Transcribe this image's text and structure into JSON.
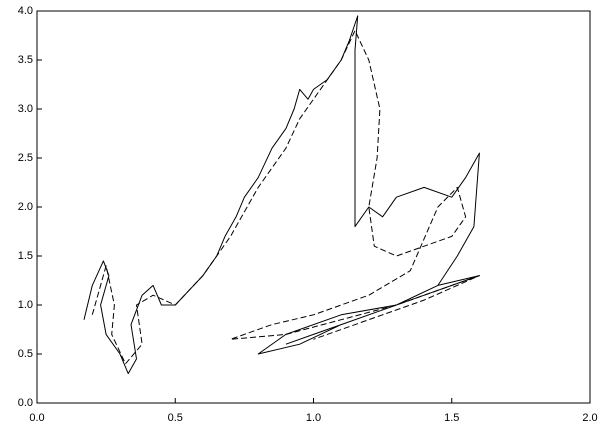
{
  "chart_data": {
    "type": "line",
    "xlim": [
      0,
      2.0
    ],
    "ylim": [
      0,
      4.0
    ],
    "xticks": [
      {
        "value": 0,
        "label": "0.0"
      },
      0.5,
      {
        "value": 1,
        "label": "1.0"
      },
      1.5,
      {
        "value": 2,
        "label": "2.0"
      }
    ],
    "yticks": [
      {
        "value": 0,
        "label": "0.0"
      },
      0.5,
      {
        "value": 1,
        "label": "1.0"
      },
      1.5,
      {
        "value": 2,
        "label": "2.0"
      },
      2.5,
      {
        "value": 3,
        "label": "3.0"
      },
      3.5,
      {
        "value": 4,
        "label": "4.0"
      }
    ],
    "grid": false,
    "series": [
      {
        "color": "#000000",
        "dash": false,
        "x": [
          0.17,
          0.2,
          0.24,
          0.26,
          0.23,
          0.25,
          0.3,
          0.33,
          0.36,
          0.34,
          0.38,
          0.42,
          0.45,
          0.5,
          0.55,
          0.6,
          0.65,
          0.68,
          0.72,
          0.75,
          0.8,
          0.85,
          0.9,
          0.93,
          0.95,
          0.98,
          1.0,
          1.05,
          1.1,
          1.13,
          1.16,
          1.15,
          1.15,
          1.2,
          1.25,
          1.3,
          1.4,
          1.5,
          1.55,
          1.6,
          1.58,
          1.52,
          1.45,
          1.3,
          1.1,
          0.95,
          0.8,
          0.9,
          1.1,
          1.3,
          1.45,
          1.6,
          1.4,
          1.2,
          1.0,
          0.9
        ],
        "values": [
          0.85,
          1.2,
          1.45,
          1.3,
          1.0,
          0.7,
          0.5,
          0.3,
          0.45,
          0.8,
          1.1,
          1.2,
          1.0,
          1.0,
          1.15,
          1.3,
          1.5,
          1.7,
          1.9,
          2.1,
          2.3,
          2.6,
          2.8,
          3.0,
          3.2,
          3.1,
          3.2,
          3.3,
          3.5,
          3.7,
          3.95,
          3.6,
          1.8,
          2.0,
          1.9,
          2.1,
          2.2,
          2.1,
          2.3,
          2.55,
          1.8,
          1.5,
          1.2,
          1.0,
          0.8,
          0.6,
          0.5,
          0.7,
          0.9,
          1.0,
          1.2,
          1.3,
          1.1,
          0.9,
          0.7,
          0.6
        ]
      },
      {
        "color": "#000000",
        "dash": true,
        "x": [
          0.2,
          0.25,
          0.28,
          0.27,
          0.32,
          0.38,
          0.36,
          0.42,
          0.5,
          0.6,
          0.7,
          0.8,
          0.9,
          0.95,
          1.0,
          1.1,
          1.15,
          1.2,
          1.24,
          1.23,
          1.2,
          1.22,
          1.3,
          1.4,
          1.5,
          1.55,
          1.52,
          1.45,
          1.35,
          1.2,
          1.0,
          0.85,
          0.7,
          0.9,
          1.1,
          1.3,
          1.5,
          1.6,
          1.4,
          1.2,
          1.0
        ],
        "values": [
          0.9,
          1.4,
          1.0,
          0.7,
          0.4,
          0.6,
          1.0,
          1.1,
          1.0,
          1.3,
          1.7,
          2.2,
          2.6,
          2.9,
          3.1,
          3.5,
          3.8,
          3.5,
          3.0,
          2.5,
          2.0,
          1.6,
          1.5,
          1.6,
          1.7,
          1.9,
          2.2,
          2.0,
          1.35,
          1.1,
          0.9,
          0.8,
          0.65,
          0.7,
          0.85,
          1.0,
          1.2,
          1.3,
          1.05,
          0.85,
          0.65
        ]
      }
    ]
  }
}
